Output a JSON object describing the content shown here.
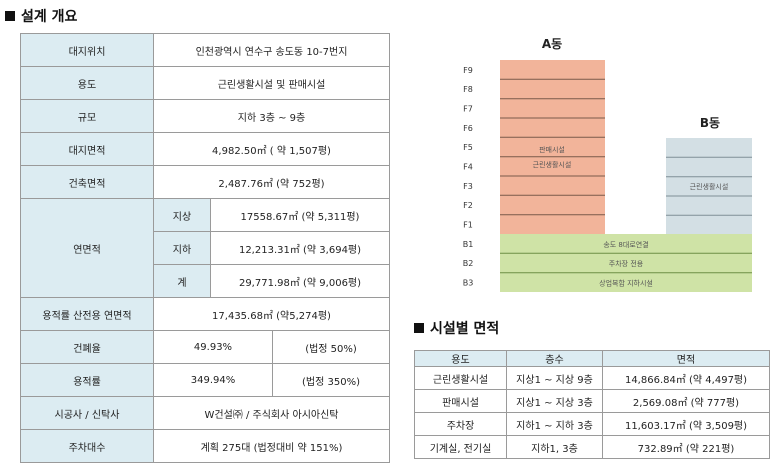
{
  "overview": {
    "title": "설계 개요",
    "rows": [
      {
        "label": "대지위치",
        "value": "인천광역시 연수구 송도동 10-7번지"
      },
      {
        "label": "용도",
        "value": "근린생활시설 및 판매시설"
      },
      {
        "label": "규모",
        "value": "지하 3층 ~ 9층"
      },
      {
        "label": "대지면적",
        "value": "4,982.50㎡ ( 약 1,507평)"
      },
      {
        "label": "건축면적",
        "value": "2,487.76㎡ (약 752평)"
      }
    ],
    "gross": {
      "label": "연면적",
      "sub": [
        {
          "label": "지상",
          "value": "17558.67㎡ (약 5,311평)"
        },
        {
          "label": "지하",
          "value": "12,213.31㎡ (약 3,694평)"
        },
        {
          "label": "계",
          "value": "29,771.98㎡ (약 9,006평)"
        }
      ]
    },
    "far_area": {
      "label": "용적률 산전용 연면적",
      "value": "17,435.68㎡ (약5,274평)"
    },
    "coverage": {
      "label": "건폐율",
      "value": "49.93%",
      "legal": "(법정 50%)"
    },
    "far": {
      "label": "용적률",
      "value": "349.94%",
      "legal": "(법정 350%)"
    },
    "contractor": {
      "label": "시공사 / 신탁사",
      "value": "W건설㈜ / 주식회사 아시아신탁"
    },
    "parking": {
      "label": "주차대수",
      "value": "계획 275대 (법정대비 약 151%)"
    }
  },
  "diagram": {
    "building_a": "A동",
    "building_b": "B동",
    "floors_above": [
      "F9",
      "F8",
      "F7",
      "F6",
      "F5",
      "F4",
      "F3",
      "F2",
      "F1"
    ],
    "floors_below": [
      "B1",
      "B2",
      "B3"
    ],
    "a_use_1": "판매시설",
    "a_use_2": "근린생활시설",
    "b_use": "근린생활시설",
    "b1_use": "송도 8대로연결",
    "b2_use": "주차장 전용",
    "b3_use": "상업복합 지하시설",
    "colors": {
      "a": "#f2b49a",
      "b": "#d3dfe4",
      "basement": "#cfe3a6"
    }
  },
  "facility": {
    "title": "시설별 면적",
    "headers": [
      "용도",
      "층수",
      "면적"
    ],
    "rows": [
      {
        "use": "근린생활시설",
        "floors": "지상1 ~ 지상 9층",
        "area": "14,866.84㎡ (약 4,497평)"
      },
      {
        "use": "판매시설",
        "floors": "지상1 ~ 지상 3층",
        "area": "2,569.08㎡ (약 777평)"
      },
      {
        "use": "주차장",
        "floors": "지하1 ~ 지하 3층",
        "area": "11,603.17㎡ (약 3,509평)"
      },
      {
        "use": "기계실, 전기실",
        "floors": "지하1, 3층",
        "area": "732.89㎡ (약 221평)"
      }
    ]
  }
}
